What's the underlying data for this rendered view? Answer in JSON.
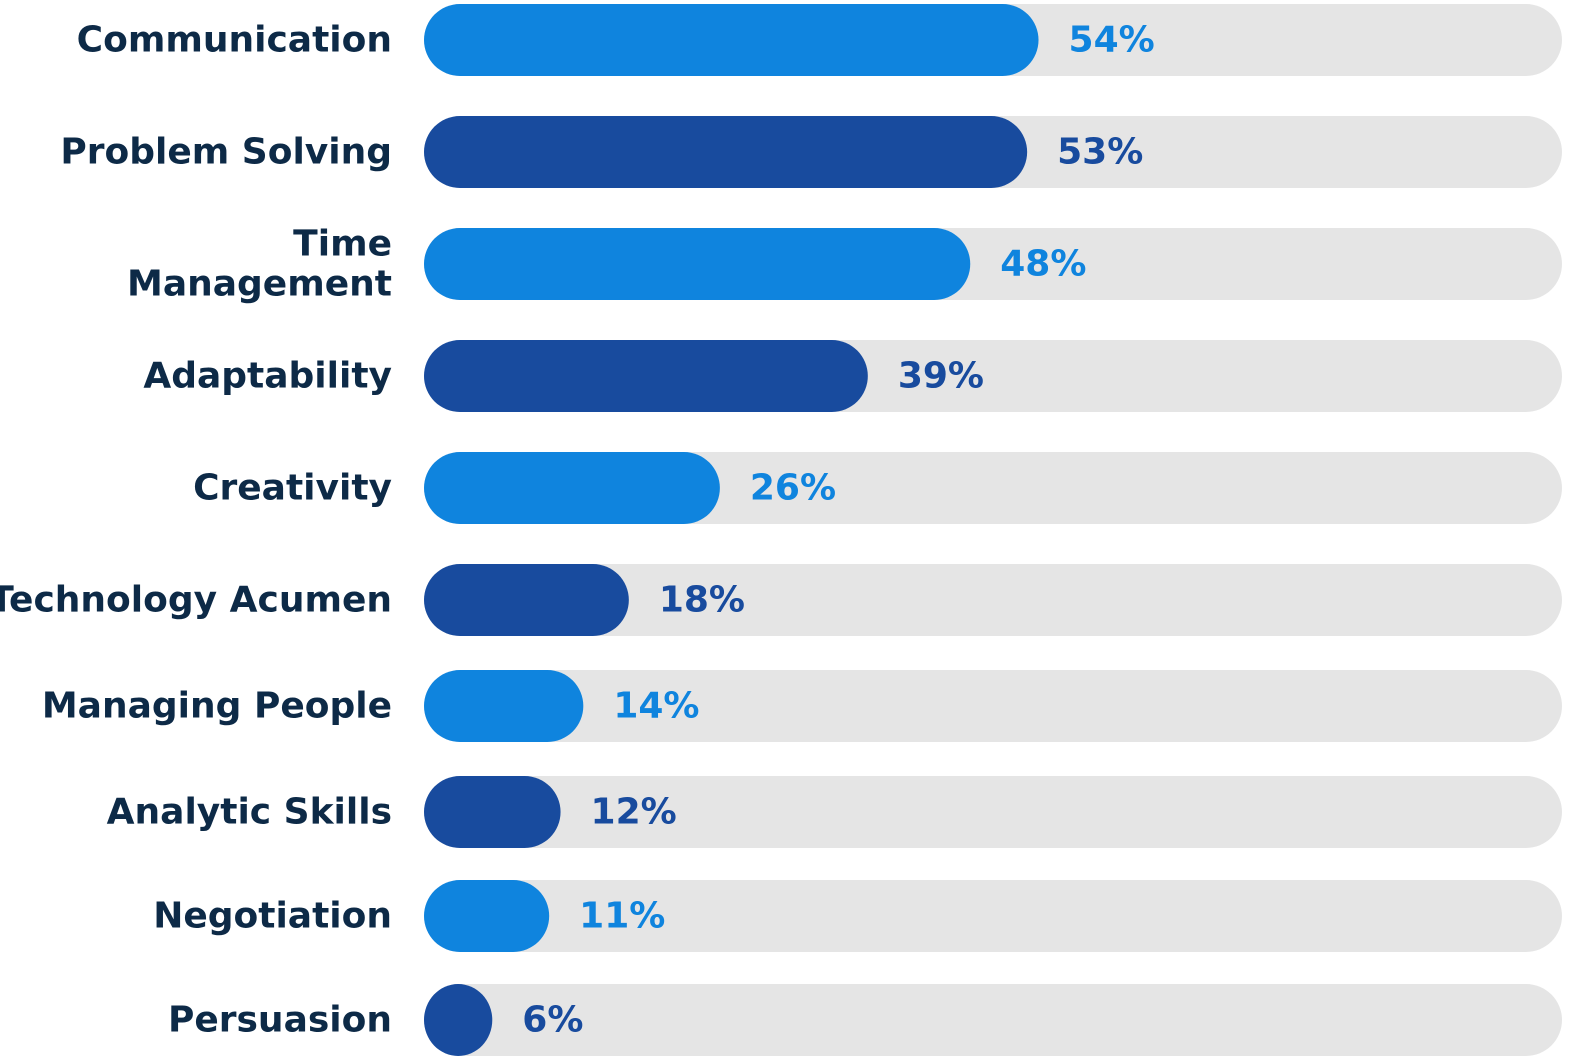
{
  "chart_data": {
    "type": "bar",
    "orientation": "horizontal",
    "categories": [
      "Communication",
      "Problem Solving",
      "Time Management",
      "Adaptability",
      "Creativity",
      "Technology Acumen",
      "Managing People",
      "Analytic Skills",
      "Negotiation",
      "Persuasion"
    ],
    "category_label_lines": [
      [
        "Communication"
      ],
      [
        "Problem Solving"
      ],
      [
        "Time",
        "Management"
      ],
      [
        "Adaptability"
      ],
      [
        "Creativity"
      ],
      [
        "Technology Acumen"
      ],
      [
        "Managing People"
      ],
      [
        "Analytic Skills"
      ],
      [
        "Negotiation"
      ],
      [
        "Persuasion"
      ]
    ],
    "values": [
      54,
      53,
      48,
      39,
      26,
      18,
      14,
      12,
      11,
      6
    ],
    "value_labels": [
      "54%",
      "53%",
      "48%",
      "39%",
      "26%",
      "18%",
      "14%",
      "12%",
      "11%",
      "6%"
    ],
    "xlim": [
      0,
      100
    ],
    "title": "",
    "xlabel": "",
    "ylabel": "",
    "grid": false,
    "legend": "none"
  },
  "colors": {
    "bar_light": "#0f84de",
    "bar_dark": "#184b9e",
    "track": "#e5e5e5",
    "label_text": "#0d2a47"
  }
}
